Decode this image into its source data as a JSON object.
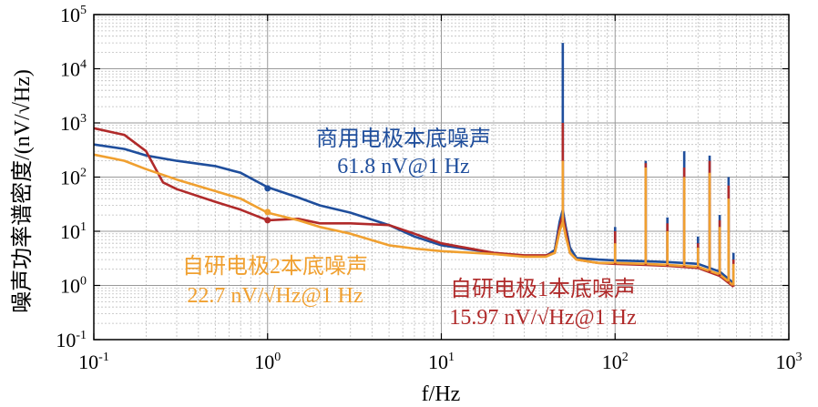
{
  "chart_data": {
    "type": "line",
    "xscale": "log",
    "yscale": "log",
    "xlim": [
      0.1,
      1000
    ],
    "ylim": [
      0.1,
      100000
    ],
    "grid": true,
    "xlabel": "f/Hz",
    "ylabel": "噪声功率谱密度/(nV/√Hz)",
    "x_ticks": [
      {
        "base": "10",
        "exp": "-1"
      },
      {
        "base": "10",
        "exp": "0"
      },
      {
        "base": "10",
        "exp": "1"
      },
      {
        "base": "10",
        "exp": "2"
      },
      {
        "base": "10",
        "exp": "3"
      }
    ],
    "y_ticks": [
      {
        "base": "10",
        "exp": "-1"
      },
      {
        "base": "10",
        "exp": "0"
      },
      {
        "base": "10",
        "exp": "1"
      },
      {
        "base": "10",
        "exp": "2"
      },
      {
        "base": "10",
        "exp": "3"
      },
      {
        "base": "10",
        "exp": "4"
      },
      {
        "base": "10",
        "exp": "5"
      }
    ],
    "series": [
      {
        "color": "#1f4e9c",
        "baseline": [
          [
            0.1,
            400
          ],
          [
            0.15,
            330
          ],
          [
            0.2,
            250
          ],
          [
            0.3,
            200
          ],
          [
            0.5,
            160
          ],
          [
            0.7,
            120
          ],
          [
            1.0,
            65
          ],
          [
            1.5,
            42
          ],
          [
            2,
            30
          ],
          [
            3,
            22
          ],
          [
            5,
            13
          ],
          [
            7,
            8
          ],
          [
            10,
            5.5
          ],
          [
            20,
            4
          ],
          [
            30,
            3.5
          ],
          [
            40,
            3.5
          ],
          [
            45,
            4.5
          ],
          [
            48,
            15
          ],
          [
            50,
            25
          ],
          [
            52,
            12
          ],
          [
            55,
            5
          ],
          [
            60,
            3.2
          ],
          [
            80,
            3
          ],
          [
            100,
            2.9
          ],
          [
            150,
            2.8
          ],
          [
            200,
            2.7
          ],
          [
            300,
            2.5
          ],
          [
            400,
            1.8
          ],
          [
            480,
            1.1
          ]
        ],
        "peaks": [
          [
            50,
            30000
          ],
          [
            100,
            12
          ],
          [
            150,
            200
          ],
          [
            200,
            18
          ],
          [
            250,
            300
          ],
          [
            300,
            8
          ],
          [
            350,
            250
          ],
          [
            400,
            20
          ],
          [
            450,
            100
          ],
          [
            480,
            4
          ]
        ]
      },
      {
        "color": "#b02a2a",
        "baseline": [
          [
            0.1,
            800
          ],
          [
            0.15,
            600
          ],
          [
            0.2,
            300
          ],
          [
            0.25,
            80
          ],
          [
            0.3,
            60
          ],
          [
            0.5,
            35
          ],
          [
            0.7,
            25
          ],
          [
            1.0,
            16
          ],
          [
            1.5,
            17
          ],
          [
            2,
            14
          ],
          [
            3,
            14
          ],
          [
            5,
            13
          ],
          [
            7,
            9
          ],
          [
            10,
            6
          ],
          [
            20,
            4
          ],
          [
            30,
            3.6
          ],
          [
            40,
            3.6
          ],
          [
            45,
            4
          ],
          [
            48,
            12
          ],
          [
            50,
            20
          ],
          [
            52,
            10
          ],
          [
            55,
            4
          ],
          [
            60,
            3
          ],
          [
            80,
            2.6
          ],
          [
            100,
            2.5
          ],
          [
            150,
            2.4
          ],
          [
            200,
            2.3
          ],
          [
            300,
            2.1
          ],
          [
            400,
            1.5
          ],
          [
            480,
            0.95
          ]
        ],
        "peaks": [
          [
            50,
            1000
          ],
          [
            100,
            10
          ],
          [
            150,
            180
          ],
          [
            200,
            14
          ],
          [
            250,
            150
          ],
          [
            300,
            6
          ],
          [
            350,
            200
          ],
          [
            400,
            16
          ],
          [
            450,
            70
          ],
          [
            480,
            3
          ]
        ]
      },
      {
        "color": "#f0a030",
        "baseline": [
          [
            0.1,
            260
          ],
          [
            0.15,
            200
          ],
          [
            0.2,
            140
          ],
          [
            0.3,
            90
          ],
          [
            0.5,
            55
          ],
          [
            0.7,
            40
          ],
          [
            1.0,
            22
          ],
          [
            1.5,
            16
          ],
          [
            2,
            12
          ],
          [
            3,
            9
          ],
          [
            5,
            5.5
          ],
          [
            7,
            4.8
          ],
          [
            10,
            4.3
          ],
          [
            20,
            3.8
          ],
          [
            30,
            3.4
          ],
          [
            40,
            3.4
          ],
          [
            45,
            4
          ],
          [
            48,
            10
          ],
          [
            50,
            15
          ],
          [
            52,
            8
          ],
          [
            55,
            4
          ],
          [
            60,
            3
          ],
          [
            80,
            2.6
          ],
          [
            100,
            2.6
          ],
          [
            150,
            2.5
          ],
          [
            200,
            2.4
          ],
          [
            300,
            2.2
          ],
          [
            400,
            1.6
          ],
          [
            480,
            1.0
          ]
        ],
        "peaks": [
          [
            50,
            200
          ],
          [
            100,
            6
          ],
          [
            150,
            150
          ],
          [
            200,
            10
          ],
          [
            250,
            100
          ],
          [
            300,
            5
          ],
          [
            350,
            120
          ],
          [
            400,
            12
          ],
          [
            450,
            40
          ],
          [
            480,
            2.5
          ]
        ]
      }
    ],
    "markers": [
      {
        "x": 1,
        "y": 61.8,
        "color": "#1f4e9c"
      },
      {
        "x": 1,
        "y": 15.97,
        "color": "#b02a2a"
      },
      {
        "x": 1,
        "y": 22.7,
        "color": "#f0a030"
      }
    ],
    "annotations": [
      {
        "lines": [
          "商用电极本底噪声",
          "61.8 nV@1 Hz"
        ],
        "color": "#1f4e9c"
      },
      {
        "lines": [
          "自研电极2本底噪声",
          "22.7 nV/√Hz@1 Hz"
        ],
        "color": "#f0a030"
      },
      {
        "lines": [
          "自研电极1本底噪声",
          "15.97 nV/√Hz@1 Hz"
        ],
        "color": "#b02a2a"
      }
    ]
  }
}
